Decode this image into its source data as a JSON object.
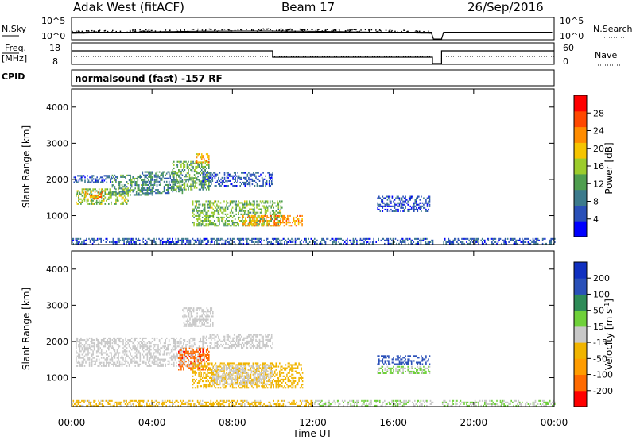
{
  "header": {
    "station": "Adak West (fitACF)",
    "beam": "Beam 17",
    "date": "26/Sep/2016"
  },
  "top_panels": {
    "nsky_label": "N.Sky",
    "nsky_ticks": [
      "10^5",
      "10^0"
    ],
    "nsearch_label": "N.Search",
    "nsearch_ticks": [
      "10^5",
      "10^0"
    ],
    "freq_label_1": "Freq.",
    "freq_label_2": "[MHz]",
    "freq_ticks": [
      "18",
      "8"
    ],
    "nave_label": "Nave",
    "nave_ticks": [
      "60",
      "0"
    ],
    "cpid_label": "CPID",
    "cpid_text": "normalsound (fast) -157 RF"
  },
  "colors": {
    "power": [
      "#0000ff",
      "#2a50b8",
      "#3c7a8c",
      "#4f9e4f",
      "#9ccc2c",
      "#f5c400",
      "#ff8c00",
      "#ff4800",
      "#ff0000"
    ],
    "velocity": [
      "#ff0000",
      "#ff6a00",
      "#ff9c00",
      "#f0b400",
      "#c8c8c8",
      "#6fd13a",
      "#2e8b57",
      "#2a50b8",
      "#1030c0"
    ]
  },
  "chart_data": [
    {
      "type": "heatmap",
      "title": "",
      "ylabel": "Slant Range [km]",
      "yticks": [
        "1000",
        "2000",
        "3000",
        "4000"
      ],
      "ylim": [
        200,
        4500
      ],
      "xlim": [
        0,
        24
      ],
      "colorbar_label": "Power [dB]",
      "colorbar_ticks": [
        "4",
        "8",
        "12",
        "16",
        "20",
        "24",
        "28"
      ],
      "color_range": [
        0,
        30
      ],
      "regions": [
        {
          "t": [
            0.2,
            2.8
          ],
          "r": [
            1300,
            1750
          ],
          "v": 14
        },
        {
          "t": [
            0.6,
            1.6
          ],
          "r": [
            1450,
            1650
          ],
          "v": 22
        },
        {
          "t": [
            2.0,
            4.0
          ],
          "r": [
            1550,
            2100
          ],
          "v": 10
        },
        {
          "t": [
            0.1,
            2.0
          ],
          "r": [
            1900,
            2100
          ],
          "v": 6
        },
        {
          "t": [
            3.5,
            5.5
          ],
          "r": [
            1600,
            2200
          ],
          "v": 9
        },
        {
          "t": [
            5.0,
            6.8
          ],
          "r": [
            1700,
            2500
          ],
          "v": 12
        },
        {
          "t": [
            6.2,
            6.8
          ],
          "r": [
            2450,
            2700
          ],
          "v": 20
        },
        {
          "t": [
            6.0,
            10.5
          ],
          "r": [
            700,
            1400
          ],
          "v": 13
        },
        {
          "t": [
            8.5,
            11.5
          ],
          "r": [
            700,
            1000
          ],
          "v": 21
        },
        {
          "t": [
            6.5,
            10.0
          ],
          "r": [
            1800,
            2200
          ],
          "v": 6
        },
        {
          "t": [
            15.2,
            17.8
          ],
          "r": [
            1100,
            1550
          ],
          "v": 5
        },
        {
          "t": [
            0.0,
            24.0
          ],
          "r": [
            200,
            350
          ],
          "v": 6
        }
      ]
    },
    {
      "type": "heatmap",
      "title": "",
      "ylabel": "Slant Range [km]",
      "yticks": [
        "1000",
        "2000",
        "3000",
        "4000"
      ],
      "ylim": [
        200,
        4500
      ],
      "xlim": [
        0,
        24
      ],
      "xlabel": "Time UT",
      "xticks": [
        "00:00",
        "04:00",
        "08:00",
        "12:00",
        "16:00",
        "20:00",
        "00:00"
      ],
      "colorbar_label": "Velocity [m s^-1]",
      "colorbar_ticks": [
        "-200",
        "-100",
        "-50",
        "-15",
        "15",
        "50",
        "100",
        "200"
      ],
      "color_range": [
        -250,
        250
      ],
      "regions": [
        {
          "t": [
            0.2,
            6.5
          ],
          "r": [
            1300,
            2100
          ],
          "v": 0
        },
        {
          "t": [
            5.5,
            7.0
          ],
          "r": [
            2400,
            2900
          ],
          "v": 0
        },
        {
          "t": [
            5.3,
            6.8
          ],
          "r": [
            1200,
            1800
          ],
          "v": -180
        },
        {
          "t": [
            6.0,
            11.5
          ],
          "r": [
            700,
            1400
          ],
          "v": -60
        },
        {
          "t": [
            7.0,
            10.0
          ],
          "r": [
            800,
            1300
          ],
          "v": 0
        },
        {
          "t": [
            6.5,
            10.0
          ],
          "r": [
            1800,
            2200
          ],
          "v": 0
        },
        {
          "t": [
            15.2,
            17.8
          ],
          "r": [
            1350,
            1600
          ],
          "v": 160
        },
        {
          "t": [
            15.2,
            17.8
          ],
          "r": [
            1100,
            1300
          ],
          "v": 30
        },
        {
          "t": [
            0.0,
            12.0
          ],
          "r": [
            200,
            350
          ],
          "v": -40
        },
        {
          "t": [
            12.0,
            24.0
          ],
          "r": [
            200,
            350
          ],
          "v": 25
        }
      ]
    }
  ]
}
